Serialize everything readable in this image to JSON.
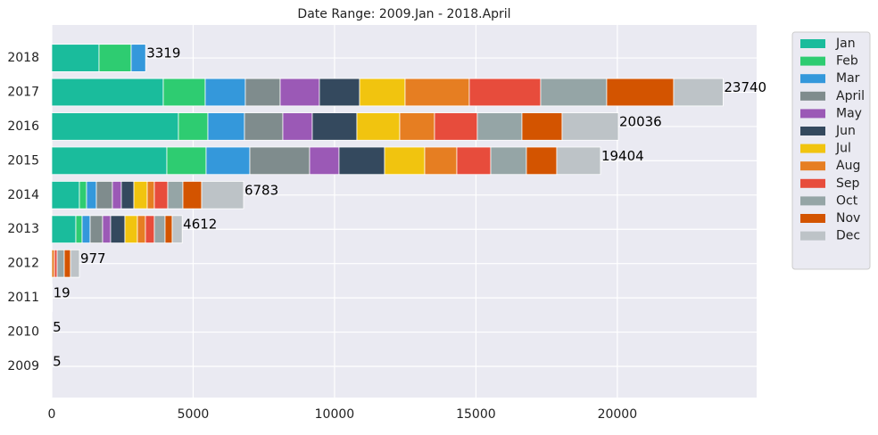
{
  "chart_data": {
    "type": "stacked-barh",
    "title": "Date Range: 2009.Jan - 2018.April",
    "categories": [
      "2009",
      "2010",
      "2011",
      "2012",
      "2013",
      "2014",
      "2015",
      "2016",
      "2017",
      "2018"
    ],
    "series": [
      {
        "name": "Jan",
        "color": "#1abc9c",
        "values": [
          5,
          5,
          19,
          0,
          852,
          978,
          4070,
          4480,
          3944,
          1672
        ]
      },
      {
        "name": "Feb",
        "color": "#2ecc71",
        "values": [
          0,
          0,
          0,
          0,
          221,
          252,
          1388,
          1041,
          1483,
          1136
        ]
      },
      {
        "name": "Mar",
        "color": "#3498db",
        "values": [
          0,
          0,
          0,
          0,
          284,
          348,
          1546,
          1294,
          1419,
          511
        ]
      },
      {
        "name": "April",
        "color": "#7f8c8d",
        "values": [
          0,
          0,
          0,
          0,
          441,
          567,
          2114,
          1356,
          1231,
          0
        ]
      },
      {
        "name": "May",
        "color": "#9b59b6",
        "values": [
          0,
          0,
          0,
          0,
          284,
          316,
          1041,
          1042,
          1388,
          0
        ]
      },
      {
        "name": "Jun",
        "color": "#34495e",
        "values": [
          0,
          0,
          0,
          0,
          505,
          442,
          1609,
          1577,
          1420,
          0
        ]
      },
      {
        "name": "Jul",
        "color": "#f1c40f",
        "values": [
          0,
          0,
          0,
          0,
          442,
          473,
          1420,
          1515,
          1609,
          0
        ]
      },
      {
        "name": "Aug",
        "color": "#e67e22",
        "values": [
          0,
          0,
          0,
          95,
          284,
          252,
          1136,
          1230,
          2271,
          0
        ]
      },
      {
        "name": "Sep",
        "color": "#e74c3c",
        "values": [
          0,
          0,
          0,
          95,
          315,
          474,
          1199,
          1514,
          2524,
          0
        ]
      },
      {
        "name": "Oct",
        "color": "#95a5a6",
        "values": [
          0,
          0,
          0,
          252,
          379,
          536,
          1262,
          1578,
          2335,
          0
        ]
      },
      {
        "name": "Nov",
        "color": "#d35400",
        "values": [
          0,
          0,
          0,
          221,
          252,
          662,
          1072,
          1420,
          2366,
          0
        ]
      },
      {
        "name": "Dec",
        "color": "#bdc3c7",
        "values": [
          0,
          0,
          0,
          314,
          353,
          1483,
          1547,
          1989,
          1750,
          0
        ]
      }
    ],
    "totals": [
      5,
      5,
      19,
      977,
      4612,
      6783,
      19404,
      20036,
      23740,
      3319
    ],
    "xlim": [
      0,
      24927
    ],
    "xticks": [
      0,
      5000,
      10000,
      15000,
      20000
    ],
    "grid": true,
    "legend": "outside-right"
  }
}
